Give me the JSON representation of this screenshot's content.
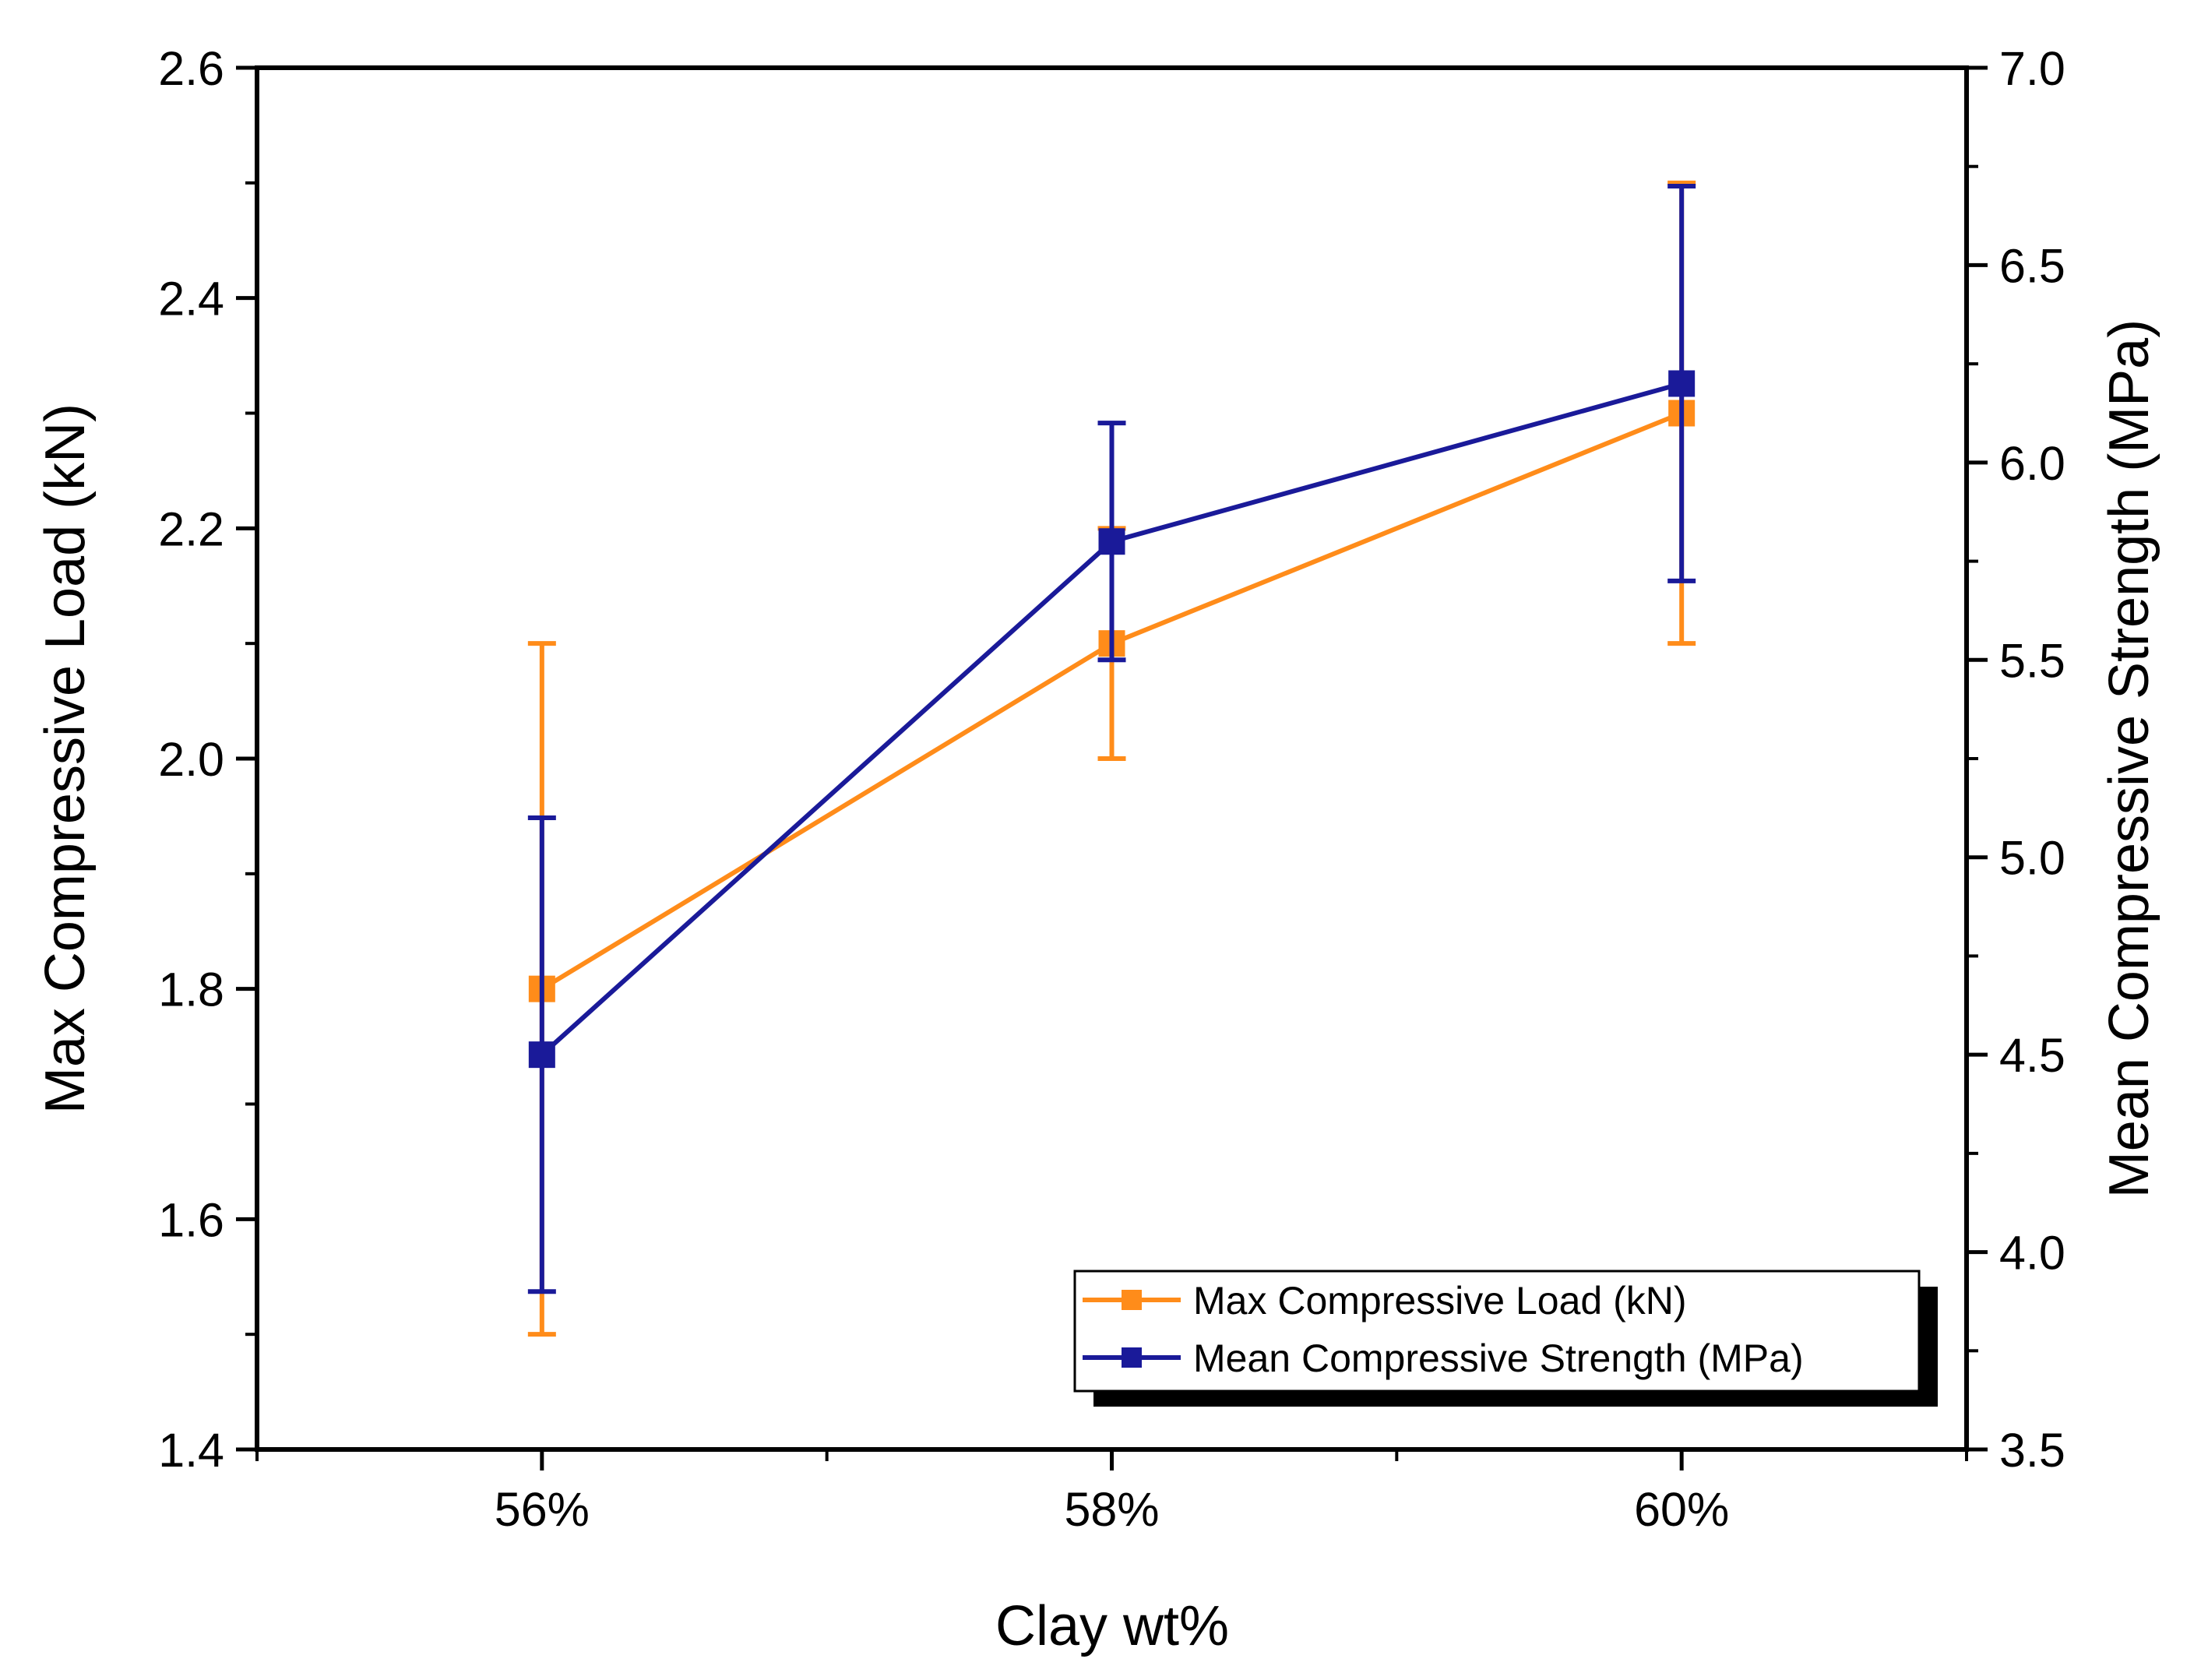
{
  "chart_data": {
    "type": "line",
    "title": "",
    "xlabel": "Clay wt%",
    "ylabel": "Max Compressive Load (kN)",
    "y2label": "Mean Compressive Strength (MPa)",
    "categories": [
      "56%",
      "58%",
      "60%"
    ],
    "x_range": [
      0.5,
      3.5
    ],
    "ylim": [
      1.4,
      2.6
    ],
    "y_ticks": [
      "1.4",
      "1.6",
      "1.8",
      "2.0",
      "2.2",
      "2.4",
      "2.6"
    ],
    "y2lim": [
      3.5,
      7.0
    ],
    "y2_ticks": [
      "3.5",
      "4.0",
      "4.5",
      "5.0",
      "5.5",
      "6.0",
      "6.5",
      "7.0"
    ],
    "series": [
      {
        "name": "Max Compressive Load (kN)",
        "axis": "left",
        "color": "#FF8C1A",
        "values": [
          1.8,
          2.1,
          2.3
        ],
        "err_low": [
          1.5,
          2.0,
          2.1
        ],
        "err_high": [
          2.1,
          2.2,
          2.5
        ]
      },
      {
        "name": "Mean Compressive Strength (MPa)",
        "axis": "right",
        "color": "#1A1A99",
        "values": [
          4.5,
          5.8,
          6.2
        ],
        "err_low": [
          3.9,
          5.5,
          5.7
        ],
        "err_high": [
          5.1,
          6.1,
          6.7
        ]
      }
    ],
    "legend_position": "bottom-right",
    "grid": false
  }
}
